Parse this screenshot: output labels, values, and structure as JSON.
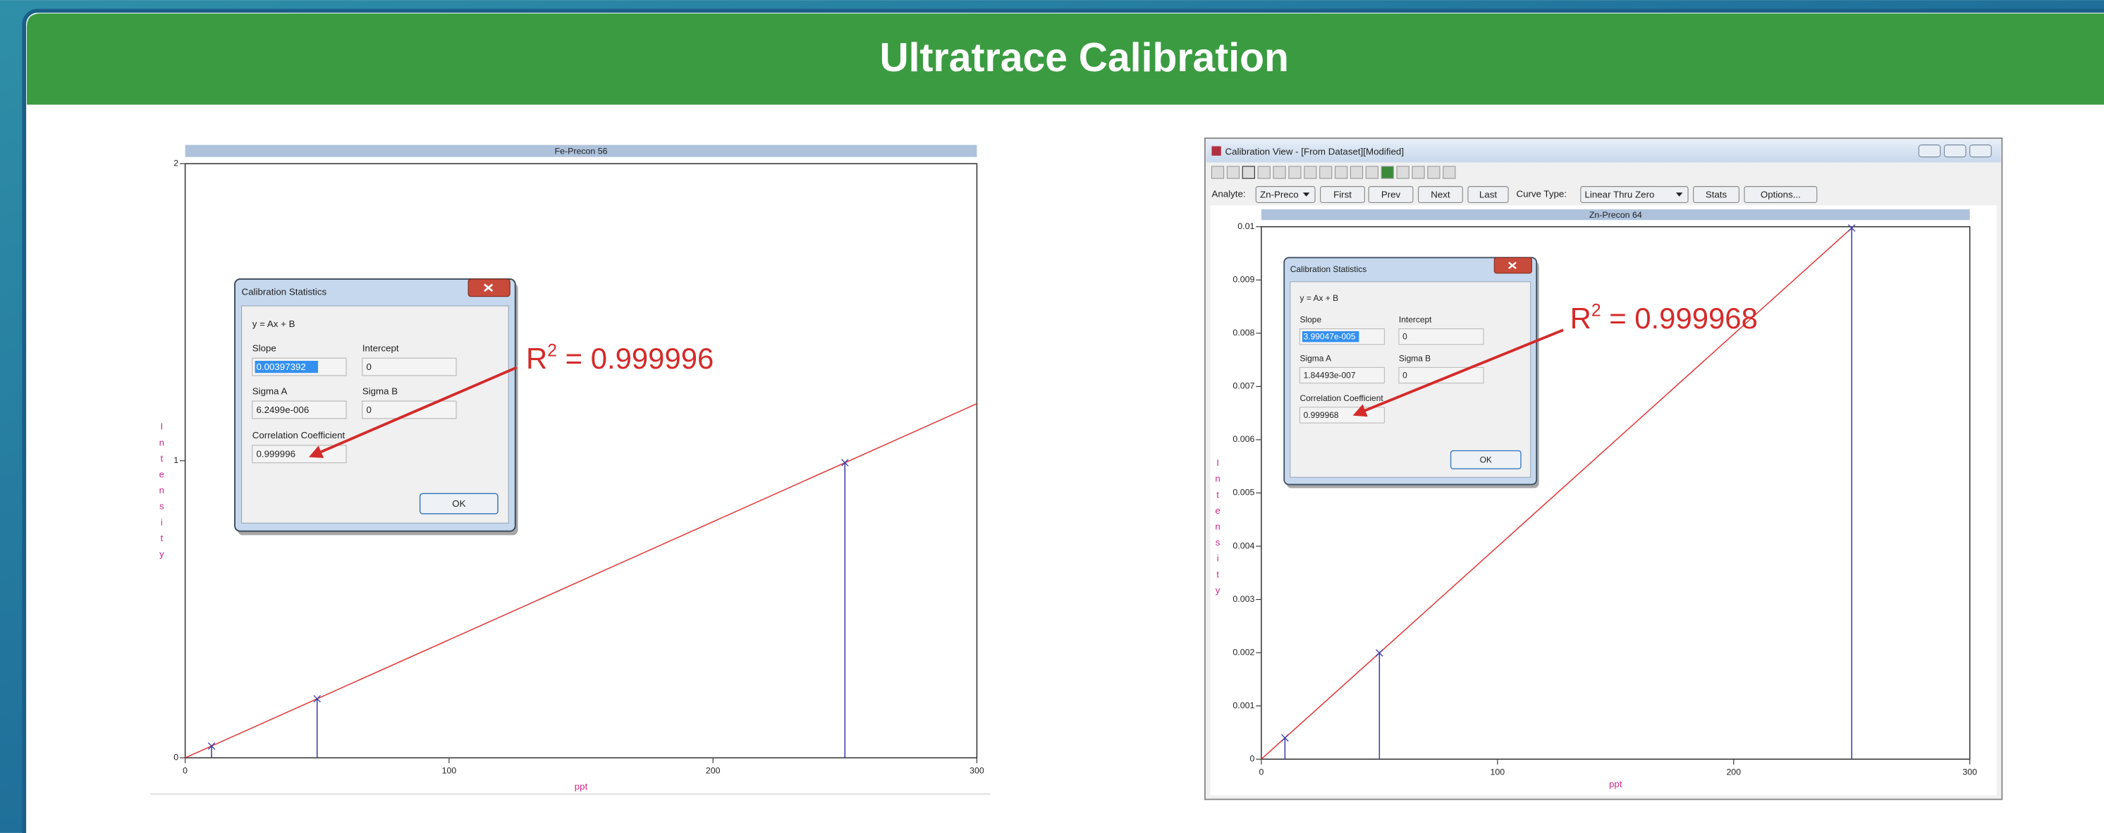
{
  "header": {
    "title": "Ultratrace Calibration"
  },
  "chart_data": [
    {
      "type": "stem",
      "title": "Fe-Precon 56",
      "xlabel": "ppt",
      "ylabel": "Intensity",
      "xlim": [
        0,
        300
      ],
      "xticks": [
        0,
        100,
        200,
        300
      ],
      "ylim": [
        0,
        2
      ],
      "yticks": [
        0,
        1,
        2
      ],
      "x": [
        10,
        50,
        250
      ],
      "series": [
        {
          "color": "#3a3aa8",
          "values": [
            0.0397,
            0.1987,
            0.9935
          ]
        }
      ],
      "fit": {
        "color": "#e03a3a",
        "x": [
          0,
          300
        ],
        "values": [
          0,
          1.192
        ]
      }
    },
    {
      "type": "stem",
      "title": "Zn-Precon 64",
      "xlabel": "ppt",
      "ylabel": "Intensity",
      "xlim": [
        0,
        300
      ],
      "xticks": [
        0,
        100,
        200,
        300
      ],
      "ylim": [
        0,
        0.01
      ],
      "yticks": [
        0,
        0.001,
        0.002,
        0.003,
        0.004,
        0.005,
        0.006,
        0.007,
        0.008,
        0.009,
        0.01
      ],
      "x": [
        10,
        50,
        250
      ],
      "series": [
        {
          "color": "#3a3aa8",
          "values": [
            0.000399,
            0.001995,
            0.009976
          ]
        }
      ],
      "fit": {
        "color": "#e03a3a",
        "x": [
          0,
          250.6
        ],
        "values": [
          0,
          0.01
        ]
      }
    }
  ],
  "dialogs": [
    {
      "title": "Calibration Statistics",
      "equation": "y = Ax + B",
      "fields": [
        {
          "label": "Slope",
          "value": "0.00397392"
        },
        {
          "label": "Intercept",
          "value": "0"
        },
        {
          "label": "Sigma A",
          "value": "6.2499e-006"
        },
        {
          "label": "Sigma B",
          "value": "0"
        },
        {
          "label": "Correlation Coefficient",
          "value": "0.999996"
        }
      ],
      "button": "OK"
    },
    {
      "title": "Calibration Statistics",
      "equation": "y = Ax + B",
      "fields": [
        {
          "label": "Slope",
          "value": "3.99047e-005"
        },
        {
          "label": "Intercept",
          "value": "0"
        },
        {
          "label": "Sigma A",
          "value": "1.84493e-007"
        },
        {
          "label": "Sigma B",
          "value": "0"
        },
        {
          "label": "Correlation Coefficient",
          "value": "0.999968"
        }
      ],
      "button": "OK"
    }
  ],
  "annotations": [
    {
      "parts": [
        "R",
        "2",
        " = 0.999996"
      ]
    },
    {
      "parts": [
        "R",
        "2",
        " = 0.999968"
      ]
    }
  ],
  "window": {
    "title": "Calibration View - [From Dataset][Modified]",
    "analyte_label": "Analyte:",
    "analyte": "Zn-Preco",
    "nav_buttons": [
      "First",
      "Prev",
      "Next",
      "Last"
    ],
    "curve_label": "Curve Type:",
    "curve": "Linear Thru Zero",
    "tool_buttons": [
      "Stats",
      "Options..."
    ]
  }
}
